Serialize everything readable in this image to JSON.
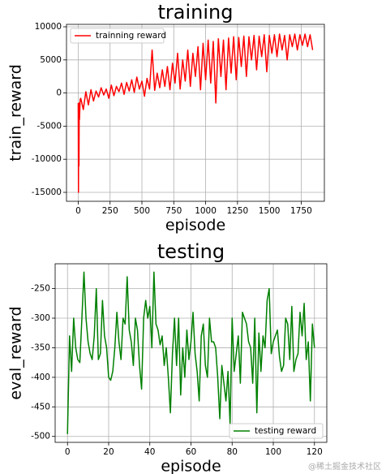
{
  "chart_data": [
    {
      "type": "line",
      "title": "training",
      "xlabel": "episode",
      "ylabel": "train_reward",
      "x": [
        0,
        2,
        4,
        6,
        8,
        10,
        15,
        20,
        40,
        60,
        80,
        100,
        120,
        140,
        160,
        180,
        200,
        220,
        240,
        260,
        280,
        300,
        320,
        340,
        360,
        380,
        400,
        420,
        440,
        460,
        480,
        500,
        520,
        540,
        560,
        580,
        600,
        620,
        640,
        660,
        680,
        700,
        720,
        740,
        760,
        780,
        800,
        820,
        840,
        860,
        880,
        900,
        920,
        940,
        960,
        980,
        1000,
        1020,
        1040,
        1060,
        1080,
        1100,
        1120,
        1140,
        1160,
        1180,
        1200,
        1220,
        1240,
        1260,
        1280,
        1300,
        1320,
        1340,
        1360,
        1380,
        1400,
        1420,
        1440,
        1460,
        1480,
        1500,
        1520,
        1540,
        1560,
        1580,
        1600,
        1620,
        1640,
        1660,
        1680,
        1700,
        1720,
        1740,
        1760,
        1780,
        1800,
        1820,
        1840
      ],
      "series": [
        {
          "name": "trainning reward",
          "color": "#ff0000",
          "values": [
            -1500,
            -15000,
            -2000,
            -11000,
            -1500,
            -4000,
            -1000,
            -800,
            -2500,
            200,
            -1800,
            500,
            -1200,
            300,
            -600,
            800,
            -300,
            600,
            -800,
            1200,
            -400,
            1000,
            200,
            1500,
            -200,
            1600,
            300,
            2000,
            100,
            2400,
            600,
            1800,
            -500,
            2200,
            600,
            6500,
            400,
            3000,
            800,
            3500,
            1000,
            4000,
            500,
            4500,
            1500,
            6000,
            600,
            5000,
            1800,
            6500,
            1000,
            6000,
            2500,
            7000,
            500,
            7500,
            2000,
            8000,
            1500,
            7800,
            -1500,
            8200,
            2500,
            8000,
            500,
            8300,
            3000,
            8500,
            2000,
            8400,
            4000,
            8600,
            2500,
            8500,
            5000,
            8700,
            3500,
            8600,
            5500,
            8800,
            3200,
            8700,
            6000,
            8800,
            5500,
            8900,
            6500,
            8700,
            5000,
            8800,
            7000,
            8900,
            6500,
            8800,
            7200,
            8900,
            7000,
            8800,
            6500
          ]
        }
      ],
      "xlim": [
        -92,
        1932
      ],
      "ylim": [
        -16350,
        10370
      ],
      "xticks": [
        0,
        250,
        500,
        750,
        1000,
        1250,
        1500,
        1750
      ],
      "yticks": [
        -15000,
        -10000,
        -5000,
        0,
        5000,
        10000
      ],
      "grid": true,
      "legend": "upper left"
    },
    {
      "type": "line",
      "title": "testing",
      "xlabel": "episode",
      "ylabel": "eval_reward",
      "x": [
        0,
        1,
        2,
        3,
        4,
        5,
        6,
        7,
        8,
        9,
        10,
        11,
        12,
        13,
        14,
        15,
        16,
        17,
        18,
        19,
        20,
        21,
        22,
        23,
        24,
        25,
        26,
        27,
        28,
        29,
        30,
        31,
        32,
        33,
        34,
        35,
        36,
        37,
        38,
        39,
        40,
        41,
        42,
        43,
        44,
        45,
        46,
        47,
        48,
        49,
        50,
        51,
        52,
        53,
        54,
        55,
        56,
        57,
        58,
        59,
        60,
        61,
        62,
        63,
        64,
        65,
        66,
        67,
        68,
        69,
        70,
        71,
        72,
        73,
        74,
        75,
        76,
        77,
        78,
        79,
        80,
        81,
        82,
        83,
        84,
        85,
        86,
        87,
        88,
        89,
        90,
        91,
        92,
        93,
        94,
        95,
        96,
        97,
        98,
        99,
        100,
        101,
        102,
        103,
        104,
        105,
        106,
        107,
        108,
        109,
        110,
        111,
        112,
        113,
        114,
        115,
        116,
        117,
        118,
        119,
        120
      ],
      "series": [
        {
          "name": "testing reward",
          "color": "#008000",
          "values": [
            -496,
            -330,
            -390,
            -300,
            -350,
            -370,
            -375,
            -300,
            -222,
            -300,
            -340,
            -360,
            -370,
            -330,
            -250,
            -370,
            -360,
            -270,
            -330,
            -350,
            -400,
            -405,
            -390,
            -350,
            -290,
            -340,
            -370,
            -300,
            -310,
            -230,
            -320,
            -340,
            -380,
            -300,
            -320,
            -380,
            -420,
            -300,
            -270,
            -300,
            -280,
            -350,
            -222,
            -310,
            -320,
            -345,
            -330,
            -380,
            -350,
            -400,
            -460,
            -360,
            -300,
            -380,
            -300,
            -430,
            -350,
            -400,
            -320,
            -370,
            -340,
            -290,
            -360,
            -390,
            -440,
            -330,
            -310,
            -380,
            -400,
            -300,
            -340,
            -340,
            -350,
            -400,
            -470,
            -380,
            -410,
            -440,
            -390,
            -480,
            -300,
            -390,
            -360,
            -330,
            -410,
            -290,
            -300,
            -310,
            -340,
            -350,
            -410,
            -300,
            -460,
            -325,
            -390,
            -330,
            -350,
            -270,
            -250,
            -360,
            -340,
            -330,
            -320,
            -365,
            -390,
            -380,
            -300,
            -310,
            -370,
            -280,
            -390,
            -370,
            -360,
            -290,
            -330,
            -275,
            -370,
            -340,
            -440,
            -310,
            -350
          ]
        }
      ],
      "xlim": [
        -6,
        126
      ],
      "ylim": [
        -510,
        -208
      ],
      "xticks": [
        0,
        20,
        40,
        60,
        80,
        100,
        120
      ],
      "yticks": [
        -500,
        -450,
        -400,
        -350,
        -300,
        -250
      ],
      "grid": true,
      "legend": "lower right"
    }
  ],
  "watermark": "@稀土掘金技术社区"
}
